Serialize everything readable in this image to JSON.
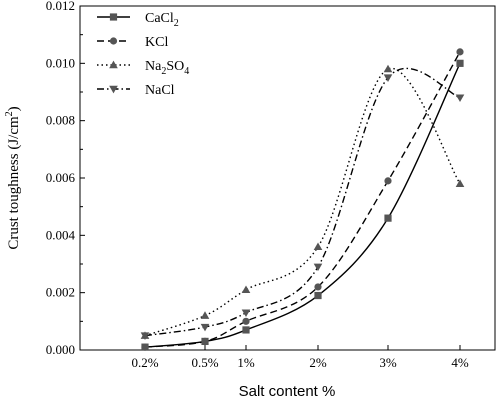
{
  "chart_data": {
    "type": "line",
    "categories": [
      "0.2%",
      "0.5%",
      "1%",
      "2%",
      "3%",
      "4%"
    ],
    "xlabel": "Salt content %",
    "ylabel": "Crust toughness (J/cm²)",
    "ylabel_parts": {
      "main": "Crust toughness (J/cm",
      "sup": "2",
      "end": ")"
    },
    "ylim": [
      0,
      0.012
    ],
    "yticks": [
      "0.000",
      "0.002",
      "0.004",
      "0.006",
      "0.008",
      "0.010",
      "0.012"
    ],
    "ytick_values": [
      0,
      0.002,
      0.004,
      0.006,
      0.008,
      0.01,
      0.012
    ],
    "grid": false,
    "legend_position": "top-left",
    "series": [
      {
        "name": "CaCl2",
        "label_main": "CaCl",
        "label_sub": "2",
        "label_end": "",
        "marker": "square",
        "dash": "solid",
        "color": "#000000",
        "marker_color": "#555555",
        "values": [
          0.0001,
          0.0003,
          0.0007,
          0.0019,
          0.0046,
          0.01
        ]
      },
      {
        "name": "KCl",
        "label_main": "KCl",
        "label_sub": "",
        "label_end": "",
        "marker": "circle",
        "dash": "dash",
        "color": "#000000",
        "marker_color": "#555555",
        "values": [
          0.0001,
          0.0003,
          0.001,
          0.0022,
          0.0059,
          0.0104
        ]
      },
      {
        "name": "Na2SO4",
        "label_main": "Na",
        "label_sub": "2",
        "label_end": "SO4",
        "label_sub2": "4",
        "marker": "triangle-up",
        "dash": "dot",
        "color": "#000000",
        "marker_color": "#555555",
        "values": [
          0.0005,
          0.0012,
          0.0021,
          0.0036,
          0.0098,
          0.0058
        ]
      },
      {
        "name": "NaCl",
        "label_main": "NaCl",
        "label_sub": "",
        "label_end": "",
        "marker": "triangle-down",
        "dash": "dashdot",
        "color": "#000000",
        "marker_color": "#555555",
        "values": [
          0.0005,
          0.0008,
          0.0013,
          0.0029,
          0.0095,
          0.0088
        ]
      }
    ]
  }
}
